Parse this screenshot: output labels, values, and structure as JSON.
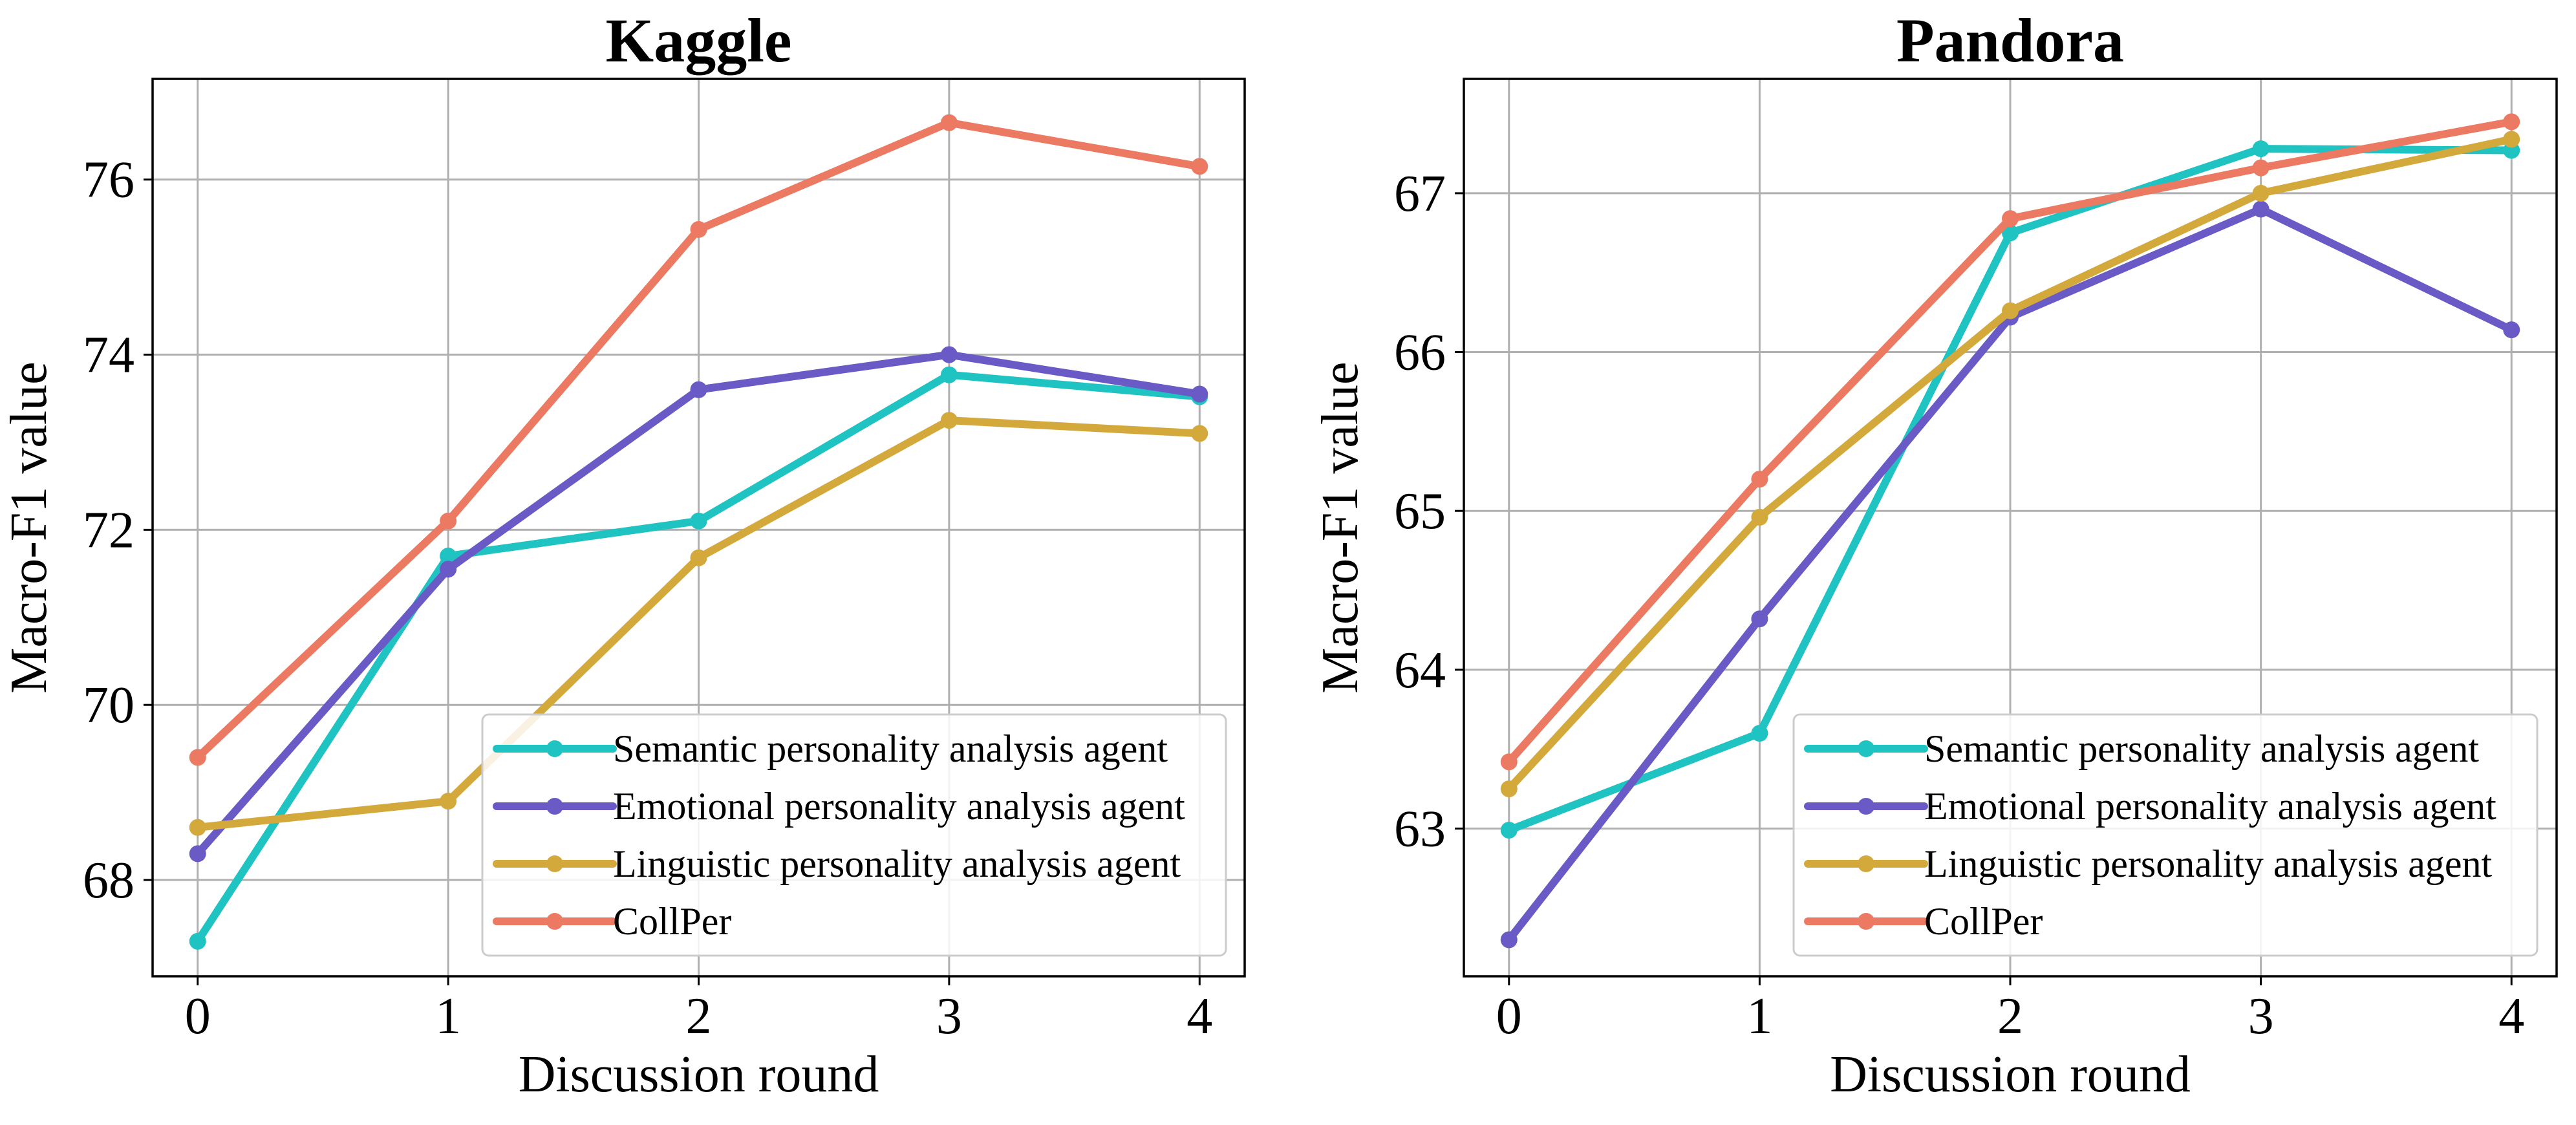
{
  "colors": {
    "semantic": "#1fc3c2",
    "emotional": "#6a5ac6",
    "linguistic": "#d4a93c",
    "collper": "#ec7a62",
    "grid": "#b0b0b0",
    "axis": "#000000"
  },
  "chart_data": [
    {
      "type": "line",
      "title": "Kaggle",
      "xlabel": "Discussion round",
      "ylabel": "Macro-F1 value",
      "x": [
        0,
        1,
        2,
        3,
        4
      ],
      "xlim": [
        -0.18,
        4.18
      ],
      "ylim": [
        66.9,
        77.15
      ],
      "yticks": [
        68,
        70,
        72,
        74,
        76
      ],
      "grid": true,
      "legend_position": "lower-right",
      "series": [
        {
          "name": "Semantic personality analysis agent",
          "color_key": "semantic",
          "values": [
            67.3,
            71.7,
            72.1,
            73.77,
            73.52
          ]
        },
        {
          "name": "Emotional personality analysis agent",
          "color_key": "emotional",
          "values": [
            68.3,
            71.55,
            73.6,
            74.0,
            73.55
          ]
        },
        {
          "name": "Linguistic personality analysis agent",
          "color_key": "linguistic",
          "values": [
            68.6,
            68.9,
            71.68,
            73.25,
            73.1
          ]
        },
        {
          "name": "CollPer",
          "color_key": "collper",
          "values": [
            69.4,
            72.1,
            75.43,
            76.65,
            76.15
          ]
        }
      ]
    },
    {
      "type": "line",
      "title": "Pandora",
      "xlabel": "Discussion round",
      "ylabel": "Macro-F1 value",
      "x": [
        0,
        1,
        2,
        3,
        4
      ],
      "xlim": [
        -0.18,
        4.18
      ],
      "ylim": [
        62.07,
        67.72
      ],
      "yticks": [
        63,
        64,
        65,
        66,
        67
      ],
      "grid": true,
      "legend_position": "lower-right",
      "series": [
        {
          "name": "Semantic personality analysis agent",
          "color_key": "semantic",
          "values": [
            62.99,
            63.6,
            66.75,
            67.28,
            67.27
          ]
        },
        {
          "name": "Emotional personality analysis agent",
          "color_key": "emotional",
          "values": [
            62.3,
            64.32,
            66.22,
            66.9,
            66.14
          ]
        },
        {
          "name": "Linguistic personality analysis agent",
          "color_key": "linguistic",
          "values": [
            63.25,
            64.96,
            66.26,
            67.0,
            67.34
          ]
        },
        {
          "name": "CollPer",
          "color_key": "collper",
          "values": [
            63.42,
            65.2,
            66.84,
            67.16,
            67.45
          ]
        }
      ]
    }
  ]
}
